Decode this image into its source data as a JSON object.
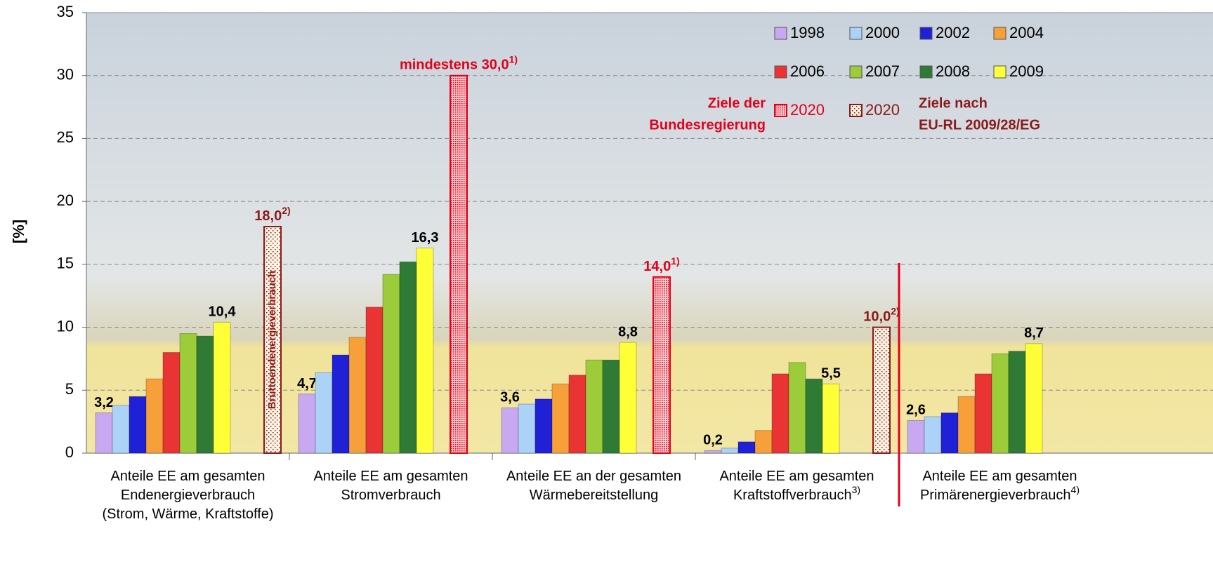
{
  "chart_data": {
    "type": "bar",
    "y_label": "[%]",
    "ylim": [
      0,
      35
    ],
    "yticks": [
      0,
      5,
      10,
      15,
      20,
      25,
      30,
      35
    ],
    "grid": true,
    "categories": [
      "Anteile EE am gesamten\nEndenergieverbrauch\n(Strom, Wärme, Kraftstoffe)",
      "Anteile EE am gesamten\nStromverbrauch",
      "Anteile EE an der gesamten\nWärmebereitstellung",
      "Anteile EE am gesamten\nKraftstoffverbrauch",
      "Anteile EE am gesamten\nPrimärenergieverbrauch"
    ],
    "category_footnotes": [
      null,
      null,
      null,
      "3)",
      "4)"
    ],
    "series": [
      {
        "name": "1998",
        "color": "#c9a8f2",
        "values": [
          3.2,
          4.7,
          3.6,
          0.2,
          2.6
        ],
        "value_labels": [
          "3,2",
          "4,7",
          "3,6",
          "0,2",
          "2,6"
        ]
      },
      {
        "name": "2000",
        "color": "#acd3f7",
        "values": [
          3.8,
          6.4,
          3.9,
          0.4,
          2.9
        ]
      },
      {
        "name": "2002",
        "color": "#2020d6",
        "values": [
          4.5,
          7.8,
          4.3,
          0.9,
          3.2
        ]
      },
      {
        "name": "2004",
        "color": "#f7a03a",
        "values": [
          5.9,
          9.2,
          5.5,
          1.8,
          4.5
        ]
      },
      {
        "name": "2006",
        "color": "#ea3434",
        "values": [
          8.0,
          11.6,
          6.2,
          6.3,
          6.3
        ]
      },
      {
        "name": "2007",
        "color": "#9ccc3a",
        "values": [
          9.5,
          14.2,
          7.4,
          7.2,
          7.9
        ]
      },
      {
        "name": "2008",
        "color": "#2f7a34",
        "values": [
          9.3,
          15.2,
          7.4,
          5.9,
          8.1
        ]
      },
      {
        "name": "2009",
        "color": "#ffff38",
        "values": [
          10.4,
          16.3,
          8.8,
          5.5,
          8.7
        ],
        "value_labels": [
          "10,4",
          "16,3",
          "8,8",
          "5,5",
          "8,7"
        ]
      },
      {
        "name": "2020",
        "color": "#e2001a",
        "pattern": "dense",
        "values": [
          null,
          30.0,
          14.0,
          null,
          null
        ],
        "value_labels": [
          null,
          "mindestens 30,0",
          "14,0",
          null,
          null
        ],
        "footnotes": [
          null,
          "1)",
          "1)",
          null,
          null
        ]
      },
      {
        "name": "2020",
        "color": "#8b1a1a",
        "pattern": "sparse",
        "values": [
          18.0,
          null,
          null,
          10.0,
          null
        ],
        "value_labels": [
          "18,0",
          null,
          null,
          "10,0",
          null
        ],
        "footnotes": [
          "2)",
          null,
          null,
          "2)",
          null
        ],
        "bar_note": [
          "Bruttoendenergieverbrauch",
          null,
          null,
          null,
          null
        ]
      }
    ],
    "legend_annotations": [
      {
        "lines": [
          "Ziele der",
          "Bundesregierung"
        ],
        "color": "#e2001a"
      },
      {
        "lines": [
          "Ziele nach",
          "EU-RL 2009/28/EG"
        ],
        "color": "#8b1a1a"
      }
    ]
  }
}
